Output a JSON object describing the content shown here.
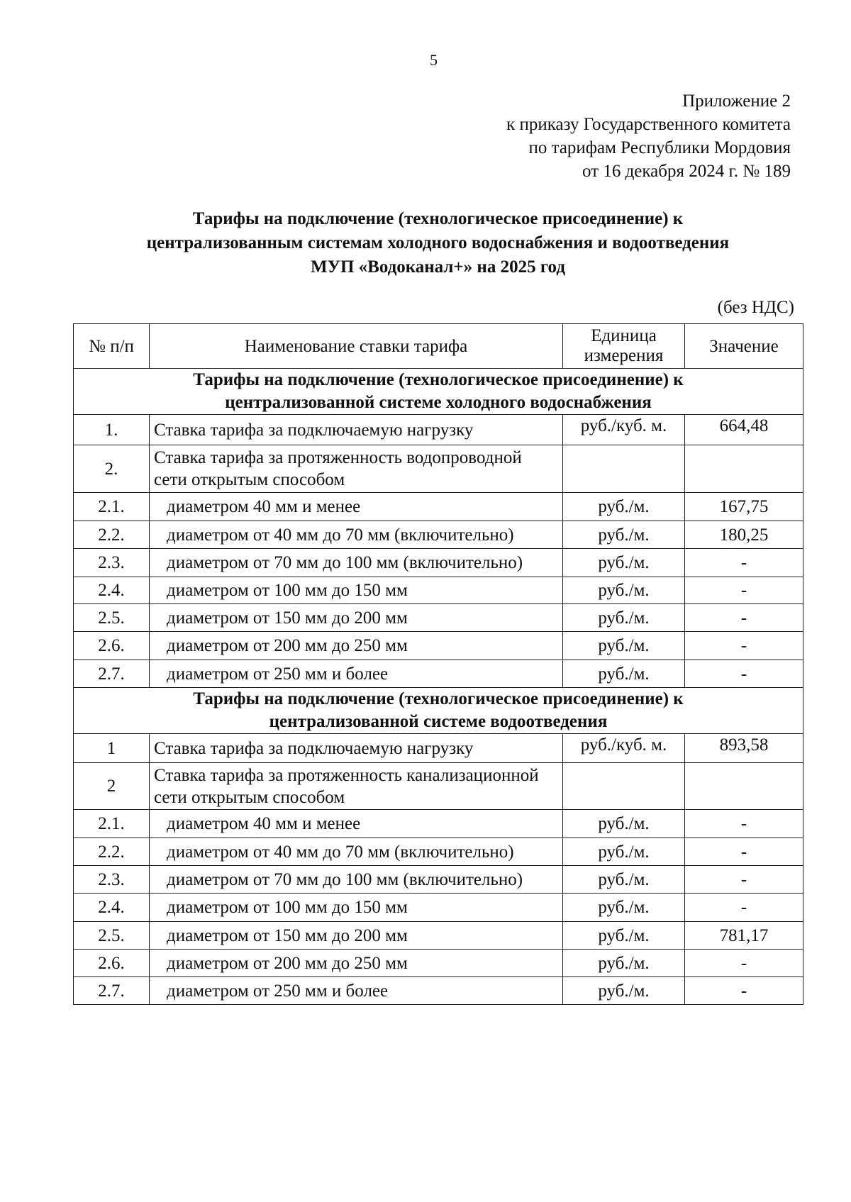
{
  "page_number": "5",
  "approval": {
    "line1": "Приложение 2",
    "line2": "к приказу Государственного комитета",
    "line3": "по тарифам Республики Мордовия",
    "line4": "от 16 декабря 2024 г. № 189"
  },
  "title": {
    "line1": "Тарифы на подключение (технологическое присоединение) к",
    "line2": "централизованным системам холодного водоснабжения и водоотведения",
    "line3": "МУП «Водоканал+» на 2025 год"
  },
  "vat_note": "(без НДС)",
  "table": {
    "headers": [
      "№ п/п",
      "Наименование ставки тарифа",
      "Единица измерения",
      "Значение"
    ],
    "sections": [
      {
        "title_line1": "Тарифы на подключение (технологическое присоединение) к",
        "title_line2": "централизованной системе холодного водоснабжения",
        "rows": [
          {
            "num": "1.",
            "name": "Ставка тарифа за подключаемую нагрузку",
            "unit": "руб./куб. м.",
            "value": "664,48",
            "sub": false
          },
          {
            "num": "2.",
            "name": "Ставка тарифа за протяженность водопроводной сети открытым способом",
            "unit": "",
            "value": "",
            "sub": false
          },
          {
            "num": "2.1.",
            "name": "диаметром 40 мм и менее",
            "unit": "руб./м.",
            "value": "167,75",
            "sub": true
          },
          {
            "num": "2.2.",
            "name": "диаметром от 40 мм до 70 мм (включительно)",
            "unit": "руб./м.",
            "value": "180,25",
            "sub": true
          },
          {
            "num": "2.3.",
            "name": "диаметром от 70 мм до 100 мм (включительно)",
            "unit": "руб./м.",
            "value": "-",
            "sub": true
          },
          {
            "num": "2.4.",
            "name": "диаметром от 100 мм до 150 мм",
            "unit": "руб./м.",
            "value": "-",
            "sub": true
          },
          {
            "num": "2.5.",
            "name": "диаметром от 150 мм до 200 мм",
            "unit": "руб./м.",
            "value": "-",
            "sub": true
          },
          {
            "num": "2.6.",
            "name": "диаметром от 200 мм до 250 мм",
            "unit": "руб./м.",
            "value": "-",
            "sub": true
          },
          {
            "num": "2.7.",
            "name": "диаметром от 250 мм и более",
            "unit": "руб./м.",
            "value": "-",
            "sub": true
          }
        ]
      },
      {
        "title_line1": "Тарифы на подключение (технологическое присоединение) к",
        "title_line2": "централизованной системе водоотведения",
        "rows": [
          {
            "num": "1",
            "name": "Ставка тарифа за подключаемую нагрузку",
            "unit": "руб./куб. м.",
            "value": "893,58",
            "sub": false
          },
          {
            "num": "2",
            "name": "Ставка тарифа за протяженность канализационной сети открытым способом",
            "unit": "",
            "value": "",
            "sub": false
          },
          {
            "num": "2.1.",
            "name": "диаметром 40 мм и менее",
            "unit": "руб./м.",
            "value": "-",
            "sub": true
          },
          {
            "num": "2.2.",
            "name": "диаметром от 40 мм до 70 мм (включительно)",
            "unit": "руб./м.",
            "value": "-",
            "sub": true
          },
          {
            "num": "2.3.",
            "name": "диаметром от 70 мм до 100 мм (включительно)",
            "unit": "руб./м.",
            "value": "-",
            "sub": true
          },
          {
            "num": "2.4.",
            "name": "диаметром от 100 мм до 150 мм",
            "unit": "руб./м.",
            "value": "-",
            "sub": true
          },
          {
            "num": "2.5.",
            "name": "диаметром от 150 мм до 200 мм",
            "unit": "руб./м.",
            "value": "781,17",
            "sub": true
          },
          {
            "num": "2.6.",
            "name": "диаметром от 200 мм до 250 мм",
            "unit": "руб./м.",
            "value": "-",
            "sub": true
          },
          {
            "num": "2.7.",
            "name": "диаметром от 250 мм и более",
            "unit": "руб./м.",
            "value": "-",
            "sub": true
          }
        ]
      }
    ]
  }
}
